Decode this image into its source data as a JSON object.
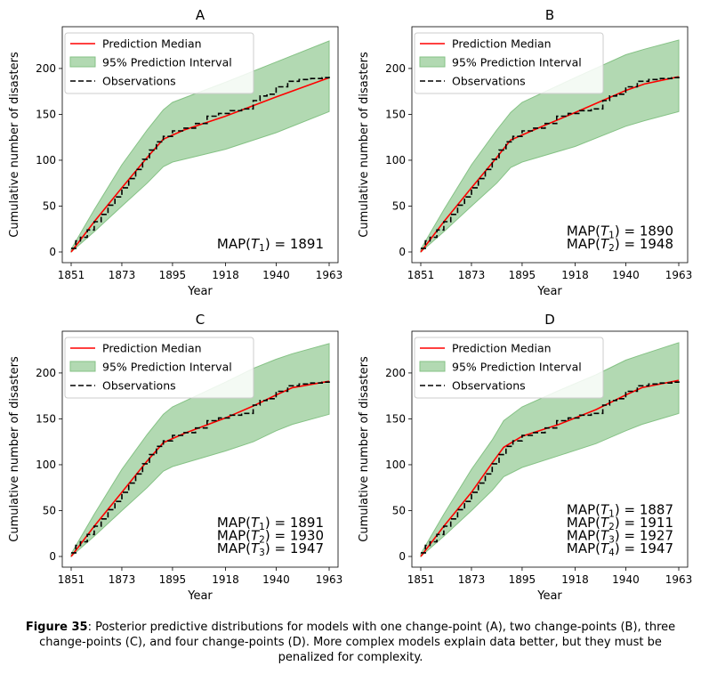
{
  "caption": {
    "figure_label": "Figure 35",
    "text": ": Posterior predictive distributions for models with one change-point (A), two change-points (B), three change-points (C), and four change-points (D). More complex models explain data better, but they must be penalized for complexity."
  },
  "colors": {
    "median": "#ff0000",
    "interval_fill": "#b2d9b2",
    "interval_edge": "#85c285",
    "observations": "#000000"
  },
  "legend": {
    "placement": "upper-left",
    "entries": [
      "Prediction Median",
      "95% Prediction Interval",
      "Observations"
    ]
  },
  "chart_data": [
    {
      "type": "line",
      "title": "A",
      "xlabel": "Year",
      "ylabel": "Cumulative number of disasters",
      "xlim": [
        1851,
        1963
      ],
      "ylim": [
        0,
        230
      ],
      "xticks": [
        1851,
        1873,
        1895,
        1918,
        1940,
        1963
      ],
      "yticks": [
        0,
        50,
        100,
        150,
        200
      ],
      "map_labels": [
        {
          "name": "T_1",
          "value": 1891
        }
      ],
      "series": [
        {
          "name": "Prediction Median",
          "x": [
            1851,
            1861,
            1873,
            1884,
            1891,
            1900,
            1918,
            1940,
            1963
          ],
          "y": [
            0,
            33,
            70,
            103,
            123,
            133,
            148,
            169,
            190
          ]
        },
        {
          "name": "95% Prediction Interval",
          "x": [
            1851,
            1861,
            1873,
            1884,
            1891,
            1895,
            1918,
            1940,
            1963
          ],
          "lower": [
            0,
            22,
            50,
            75,
            93,
            98,
            112,
            130,
            153
          ],
          "upper": [
            3,
            46,
            95,
            133,
            155,
            163,
            185,
            207,
            230
          ]
        },
        {
          "name": "Observations",
          "x": [
            1851,
            1853,
            1855,
            1858,
            1861,
            1864,
            1867,
            1870,
            1873,
            1876,
            1879,
            1882,
            1885,
            1888,
            1891,
            1895,
            1900,
            1905,
            1910,
            1915,
            1920,
            1925,
            1930,
            1933,
            1936,
            1940,
            1945,
            1950,
            1955,
            1960,
            1963
          ],
          "y": [
            4,
            12,
            16,
            24,
            33,
            41,
            51,
            60,
            70,
            80,
            90,
            101,
            111,
            120,
            126,
            132,
            135,
            140,
            148,
            151,
            154,
            156,
            165,
            170,
            172,
            180,
            186,
            188,
            189,
            190,
            191
          ]
        }
      ]
    },
    {
      "type": "line",
      "title": "B",
      "xlabel": "Year",
      "ylabel": "Cumulative number of disasters",
      "xlim": [
        1851,
        1963
      ],
      "ylim": [
        0,
        230
      ],
      "xticks": [
        1851,
        1873,
        1895,
        1918,
        1940,
        1963
      ],
      "yticks": [
        0,
        50,
        100,
        150,
        200
      ],
      "map_labels": [
        {
          "name": "T_1",
          "value": 1890
        },
        {
          "name": "T_2",
          "value": 1948
        }
      ],
      "series": [
        {
          "name": "Prediction Median",
          "x": [
            1851,
            1861,
            1873,
            1884,
            1890,
            1900,
            1918,
            1940,
            1948,
            1963
          ],
          "y": [
            0,
            33,
            70,
            103,
            122,
            133,
            152,
            176,
            183,
            191
          ]
        },
        {
          "name": "95% Prediction Interval",
          "x": [
            1851,
            1861,
            1873,
            1884,
            1890,
            1895,
            1918,
            1940,
            1948,
            1963
          ],
          "lower": [
            0,
            22,
            50,
            75,
            92,
            98,
            115,
            137,
            143,
            153
          ],
          "upper": [
            3,
            46,
            95,
            133,
            152,
            163,
            190,
            215,
            221,
            231
          ]
        },
        {
          "name": "Observations",
          "x": [
            1851,
            1853,
            1855,
            1858,
            1861,
            1864,
            1867,
            1870,
            1873,
            1876,
            1879,
            1882,
            1885,
            1888,
            1891,
            1895,
            1900,
            1905,
            1910,
            1915,
            1920,
            1925,
            1930,
            1933,
            1936,
            1940,
            1945,
            1950,
            1955,
            1960,
            1963
          ],
          "y": [
            4,
            12,
            16,
            24,
            33,
            41,
            51,
            60,
            70,
            80,
            90,
            101,
            111,
            120,
            126,
            132,
            135,
            140,
            148,
            151,
            154,
            156,
            165,
            170,
            172,
            180,
            186,
            188,
            189,
            190,
            191
          ]
        }
      ]
    },
    {
      "type": "line",
      "title": "C",
      "xlabel": "Year",
      "ylabel": "Cumulative number of disasters",
      "xlim": [
        1851,
        1963
      ],
      "ylim": [
        0,
        230
      ],
      "xticks": [
        1851,
        1873,
        1895,
        1918,
        1940,
        1963
      ],
      "yticks": [
        0,
        50,
        100,
        150,
        200
      ],
      "map_labels": [
        {
          "name": "T_1",
          "value": 1891
        },
        {
          "name": "T_2",
          "value": 1930
        },
        {
          "name": "T_3",
          "value": 1947
        }
      ],
      "series": [
        {
          "name": "Prediction Median",
          "x": [
            1851,
            1861,
            1873,
            1884,
            1891,
            1900,
            1918,
            1930,
            1940,
            1947,
            1963
          ],
          "y": [
            0,
            33,
            70,
            104,
            124,
            134,
            151,
            164,
            176,
            184,
            191
          ]
        },
        {
          "name": "95% Prediction Interval",
          "x": [
            1851,
            1861,
            1873,
            1884,
            1891,
            1895,
            1918,
            1930,
            1940,
            1947,
            1963
          ],
          "lower": [
            0,
            22,
            50,
            75,
            93,
            98,
            115,
            125,
            137,
            144,
            155
          ],
          "upper": [
            3,
            46,
            95,
            133,
            155,
            163,
            190,
            205,
            215,
            221,
            232
          ]
        },
        {
          "name": "Observations",
          "x": [
            1851,
            1853,
            1855,
            1858,
            1861,
            1864,
            1867,
            1870,
            1873,
            1876,
            1879,
            1882,
            1885,
            1888,
            1891,
            1895,
            1900,
            1905,
            1910,
            1915,
            1920,
            1925,
            1930,
            1933,
            1936,
            1940,
            1945,
            1950,
            1955,
            1960,
            1963
          ],
          "y": [
            4,
            12,
            16,
            24,
            33,
            41,
            51,
            60,
            70,
            80,
            90,
            101,
            111,
            120,
            126,
            132,
            135,
            140,
            148,
            151,
            154,
            156,
            165,
            170,
            172,
            180,
            186,
            188,
            189,
            190,
            191
          ]
        }
      ]
    },
    {
      "type": "line",
      "title": "D",
      "xlabel": "Year",
      "ylabel": "Cumulative number of disasters",
      "xlim": [
        1851,
        1963
      ],
      "ylim": [
        0,
        230
      ],
      "xticks": [
        1851,
        1873,
        1895,
        1918,
        1940,
        1963
      ],
      "yticks": [
        0,
        50,
        100,
        150,
        200
      ],
      "map_labels": [
        {
          "name": "T_1",
          "value": 1887
        },
        {
          "name": "T_2",
          "value": 1911
        },
        {
          "name": "T_3",
          "value": 1927
        },
        {
          "name": "T_4",
          "value": 1947
        }
      ],
      "series": [
        {
          "name": "Prediction Median",
          "x": [
            1851,
            1861,
            1873,
            1882,
            1887,
            1895,
            1911,
            1927,
            1940,
            1947,
            1963
          ],
          "y": [
            0,
            33,
            70,
            102,
            119,
            131,
            144,
            160,
            176,
            184,
            192
          ]
        },
        {
          "name": "95% Prediction Interval",
          "x": [
            1851,
            1861,
            1873,
            1882,
            1887,
            1895,
            1911,
            1927,
            1940,
            1947,
            1963
          ],
          "lower": [
            0,
            22,
            50,
            72,
            87,
            97,
            110,
            123,
            137,
            144,
            156
          ],
          "upper": [
            3,
            46,
            95,
            127,
            148,
            163,
            181,
            198,
            214,
            220,
            233
          ]
        },
        {
          "name": "Observations",
          "x": [
            1851,
            1853,
            1855,
            1858,
            1861,
            1864,
            1867,
            1870,
            1873,
            1876,
            1879,
            1882,
            1885,
            1888,
            1891,
            1895,
            1900,
            1905,
            1910,
            1915,
            1920,
            1925,
            1930,
            1933,
            1936,
            1940,
            1945,
            1950,
            1955,
            1960,
            1963
          ],
          "y": [
            4,
            12,
            16,
            24,
            33,
            41,
            51,
            60,
            70,
            80,
            90,
            101,
            111,
            120,
            126,
            132,
            135,
            140,
            148,
            151,
            154,
            156,
            165,
            170,
            172,
            180,
            186,
            188,
            189,
            190,
            191
          ]
        }
      ]
    }
  ]
}
